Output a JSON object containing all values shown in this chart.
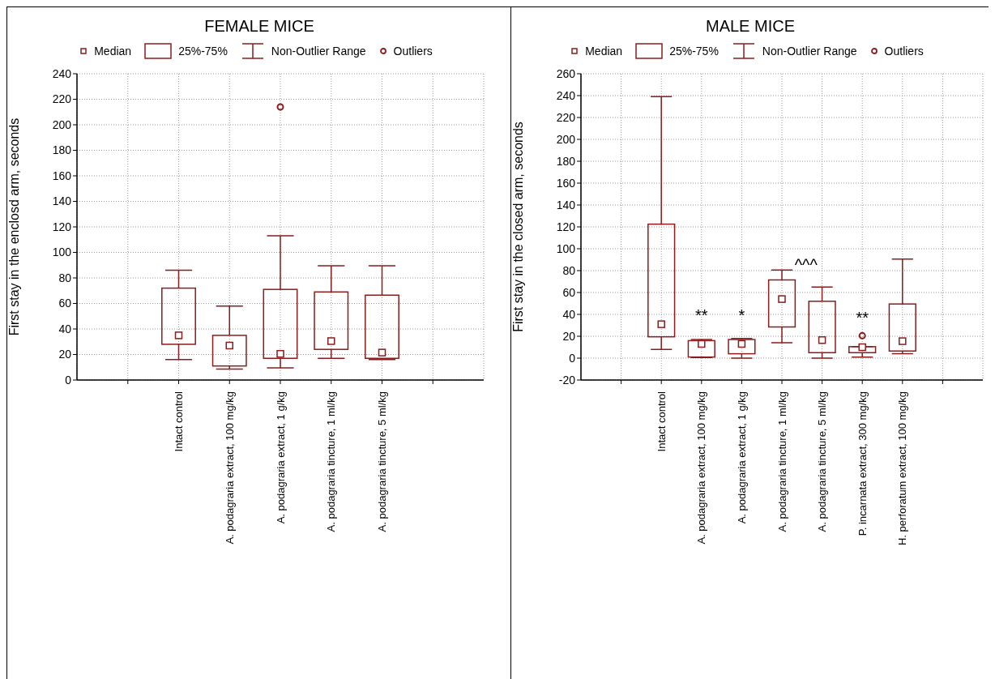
{
  "chart_data": [
    {
      "type": "box",
      "title": "FEMALE MICE",
      "ylabel": "First stay in the enclosd arm, seconds",
      "color": "#8b1c1c",
      "categories": [
        null,
        "Intact control",
        "A. podagraria extract, 100 mg/kg",
        "A. podagraria extract, 1 g/kg",
        "A. podagraria tincture, 1 ml/kg",
        "A. podagraria tincture, 5 ml/kg",
        null
      ],
      "boxes": [
        null,
        {
          "low": 16,
          "q1": 28,
          "median": 35,
          "q3": 72,
          "high": 86
        },
        {
          "low": 8.5,
          "q1": 11,
          "median": 27,
          "q3": 35,
          "high": 58
        },
        {
          "low": 9.5,
          "q1": 17,
          "median": 20.5,
          "q3": 71,
          "high": 113,
          "outliers": [
            214
          ]
        },
        {
          "low": 17,
          "q1": 24,
          "median": 30.5,
          "q3": 69,
          "high": 89.5
        },
        {
          "low": 16,
          "q1": 17,
          "median": 21.5,
          "q3": 66.5,
          "high": 89.5
        },
        null
      ],
      "ylim": [
        0,
        240
      ],
      "yticks": [
        0,
        20,
        40,
        60,
        80,
        100,
        120,
        140,
        160,
        180,
        200,
        220,
        240
      ],
      "grid": true,
      "annotations": [
        "Median",
        "25%-75%",
        "Non-Outlier Range",
        "Outliers"
      ]
    },
    {
      "type": "box",
      "title": "MALE MICE",
      "ylabel": "First stay in the closed arm, seconds",
      "color": "#8b1c1c",
      "categories": [
        null,
        "Intact control",
        "A. podagraria extract, 100 mg/kg",
        "A. podagraria extract, 1 g/kg",
        "A. podagraria tincture, 1 ml/kg",
        "A. podagraria tincture, 5 ml/kg",
        "P. incarnata extract, 300 mg/kg",
        "H. perforatum extract, 100 mg/kg",
        null
      ],
      "boxes": [
        null,
        {
          "low": 8,
          "q1": 19.5,
          "median": 31,
          "q3": 122.5,
          "high": 239
        },
        {
          "low": 0.5,
          "q1": 1,
          "median": 13,
          "q3": 16,
          "high": 17
        },
        {
          "low": 0,
          "q1": 4,
          "median": 13,
          "q3": 17,
          "high": 18
        },
        {
          "low": 14,
          "q1": 28.5,
          "median": 54,
          "q3": 71.5,
          "high": 80.5
        },
        {
          "low": 0,
          "q1": 5,
          "median": 16.5,
          "q3": 52,
          "high": 65
        },
        {
          "low": 1,
          "q1": 5,
          "median": 10,
          "q3": 10.5,
          "high": 10.5,
          "outliers": [
            20.5
          ]
        },
        {
          "low": 4,
          "q1": 6.5,
          "median": 15.5,
          "q3": 49.5,
          "high": 90.5
        },
        null
      ],
      "ylim": [
        -20,
        260
      ],
      "yticks": [
        -20,
        0,
        20,
        40,
        60,
        80,
        100,
        120,
        140,
        160,
        180,
        200,
        220,
        240,
        260
      ],
      "grid": true,
      "annotations": [
        "Median",
        "25%-75%",
        "Non-Outlier Range",
        "Outliers",
        "**",
        "*",
        "^^^",
        "**"
      ]
    }
  ]
}
